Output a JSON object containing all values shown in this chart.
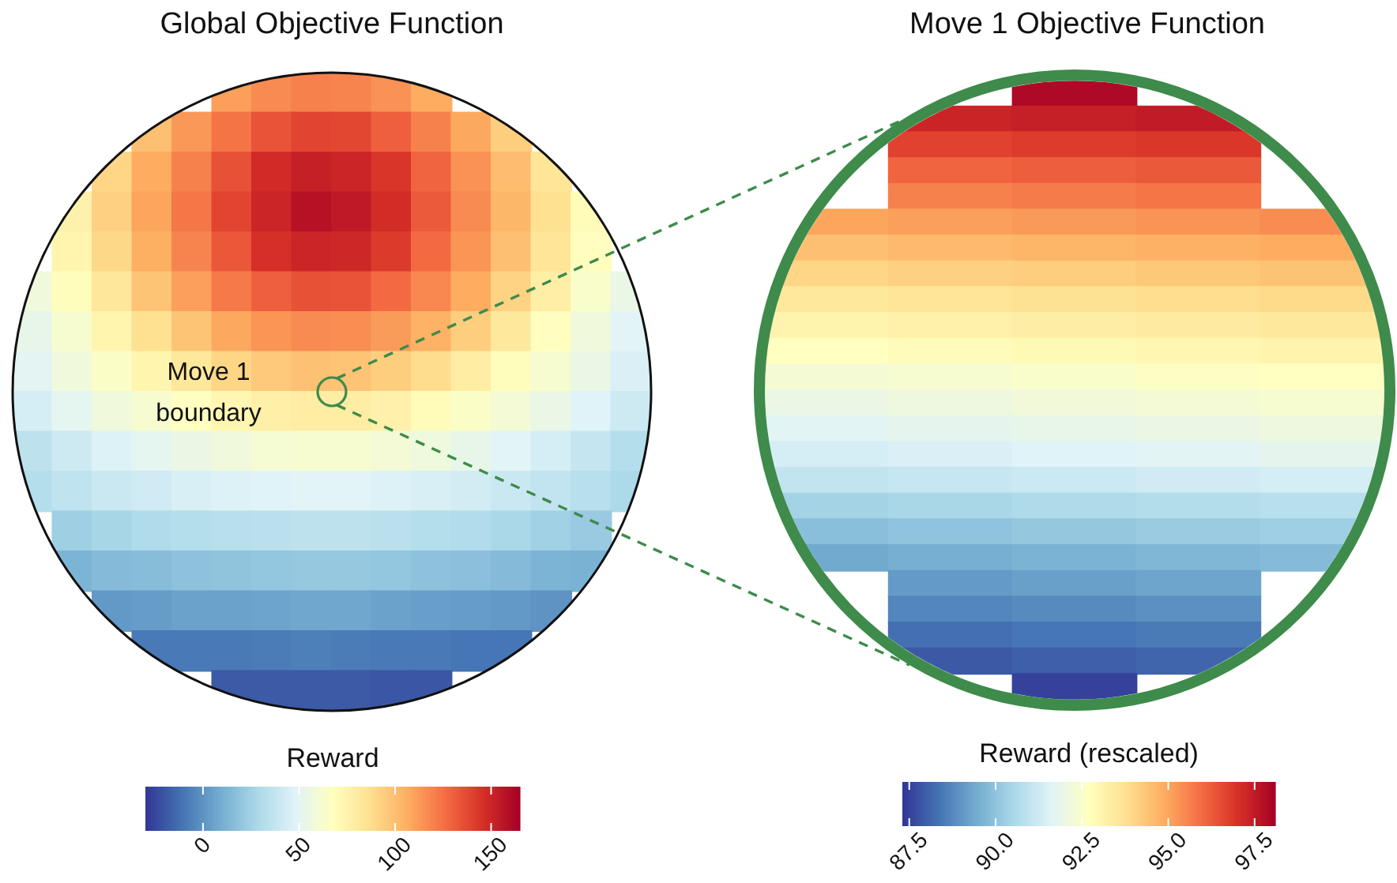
{
  "chart_data": [
    {
      "type": "heatmap",
      "title": "Global Objective Function",
      "clabel": "Reward",
      "clim": [
        -30,
        165
      ],
      "cticks": [
        0,
        50,
        100,
        150
      ],
      "annotations": [
        "Move 1 boundary"
      ],
      "categories": [
        null,
        null,
        null,
        null,
        null,
        null,
        null,
        null,
        null,
        null,
        null,
        null,
        null,
        null,
        null,
        null
      ],
      "y_categories": [
        null,
        null,
        null,
        null,
        null,
        null,
        null,
        null,
        null,
        null,
        null,
        null,
        null,
        null,
        null,
        null
      ],
      "cells": [
        [
          null,
          null,
          null,
          null,
          null,
          111,
          117,
          120,
          119,
          115,
          107,
          null,
          null,
          null,
          null,
          null
        ],
        [
          null,
          null,
          null,
          100,
          113,
          124,
          134,
          139,
          138,
          130,
          120,
          108,
          94,
          null,
          null,
          null
        ],
        [
          null,
          null,
          91,
          107,
          120,
          135,
          148,
          152,
          150,
          144,
          129,
          115,
          101,
          84,
          null,
          null
        ],
        [
          null,
          76,
          93,
          109,
          123,
          139,
          150,
          158,
          155,
          147,
          132,
          117,
          103,
          86,
          70,
          null
        ],
        [
          null,
          74,
          90,
          106,
          119,
          133,
          146,
          150,
          149,
          142,
          127,
          114,
          100,
          84,
          68,
          null
        ],
        [
          58,
          69,
          83,
          98,
          111,
          122,
          130,
          135,
          134,
          127,
          118,
          107,
          92,
          78,
          64,
          54
        ],
        [
          53,
          62,
          74,
          86,
          98,
          108,
          114,
          117,
          116,
          112,
          105,
          94,
          82,
          68,
          58,
          49
        ],
        [
          50,
          58,
          65,
          74,
          82,
          91,
          96,
          99,
          98,
          94,
          88,
          79,
          69,
          62,
          54,
          46
        ],
        [
          44,
          51,
          58,
          62,
          67,
          73,
          77,
          79,
          79,
          76,
          70,
          65,
          60,
          54,
          48,
          41
        ],
        [
          35,
          41,
          47,
          51,
          55,
          58,
          61,
          62,
          62,
          60,
          57,
          53,
          49,
          44,
          38,
          32
        ],
        [
          32,
          36,
          40,
          42,
          45,
          47,
          48,
          49,
          49,
          47,
          45,
          43,
          40,
          37,
          33,
          29
        ],
        [
          null,
          24,
          27,
          30,
          32,
          33,
          34,
          35,
          35,
          34,
          32,
          31,
          28,
          25,
          22,
          null
        ],
        [
          null,
          12,
          15,
          16,
          18,
          19,
          20,
          21,
          21,
          20,
          18,
          17,
          15,
          12,
          11,
          null
        ],
        [
          null,
          null,
          2,
          3,
          5,
          5,
          6,
          7,
          7,
          5,
          4,
          3,
          2,
          0,
          null,
          null
        ],
        [
          null,
          null,
          null,
          -9,
          -9,
          -9,
          -8,
          -7,
          -8,
          -9,
          -9,
          -10,
          -10,
          null,
          null,
          null
        ],
        [
          null,
          null,
          null,
          null,
          null,
          -19,
          -19,
          -19,
          -19,
          -20,
          -20,
          null,
          null,
          null,
          null,
          null
        ]
      ]
    },
    {
      "type": "heatmap",
      "title": "Move 1 Objective Function",
      "clabel": "Reward (rescaled)",
      "clim": [
        87.3,
        98.1
      ],
      "cticks": [
        87.5,
        {
          "value": 90,
          "label": "90.0"
        },
        92.5,
        {
          "value": 95,
          "label": "95.0"
        },
        97.5
      ],
      "categories": [
        null,
        null,
        null,
        null,
        null
      ],
      "y_categories": [
        null,
        null,
        null,
        null,
        null,
        null,
        null,
        null,
        null,
        null,
        null,
        null,
        null,
        null,
        null,
        null,
        null,
        null,
        null,
        null,
        null,
        null,
        null,
        null
      ],
      "cells": [
        [
          null,
          null,
          97.9,
          null,
          null
        ],
        [
          null,
          97.3,
          97.4,
          97.5,
          null
        ],
        [
          null,
          96.7,
          96.8,
          96.9,
          null
        ],
        [
          null,
          96.1,
          96.2,
          96.3,
          null
        ],
        [
          null,
          95.6,
          95.7,
          95.8,
          null
        ],
        [
          95.0,
          95.1,
          95.2,
          95.3,
          95.4
        ],
        [
          94.5,
          94.6,
          94.7,
          94.8,
          94.9
        ],
        [
          94.0,
          94.1,
          94.2,
          94.3,
          94.4
        ],
        [
          93.5,
          93.6,
          93.7,
          93.8,
          93.9
        ],
        [
          93.1,
          93.2,
          93.3,
          93.4,
          93.5
        ],
        [
          92.7,
          92.8,
          92.9,
          93.0,
          93.1
        ],
        [
          92.3,
          92.4,
          92.5,
          92.6,
          92.7
        ],
        [
          92.0,
          92.1,
          92.2,
          92.3,
          92.4
        ],
        [
          91.7,
          91.8,
          91.9,
          92.0,
          92.1
        ],
        [
          91.4,
          91.5,
          91.6,
          91.7,
          91.8
        ],
        [
          91.0,
          91.1,
          91.2,
          91.3,
          91.4
        ],
        [
          90.4,
          90.5,
          90.6,
          90.7,
          90.8
        ],
        [
          89.9,
          90.0,
          90.1,
          90.2,
          90.3
        ],
        [
          89.4,
          89.5,
          89.6,
          89.7,
          89.8
        ],
        [
          null,
          89.1,
          89.2,
          89.3,
          null
        ],
        [
          null,
          88.7,
          88.8,
          88.9,
          null
        ],
        [
          null,
          88.3,
          88.4,
          88.5,
          null
        ],
        [
          null,
          87.9,
          88.0,
          88.1,
          null
        ],
        [
          null,
          null,
          87.5,
          null,
          null
        ]
      ]
    }
  ]
}
